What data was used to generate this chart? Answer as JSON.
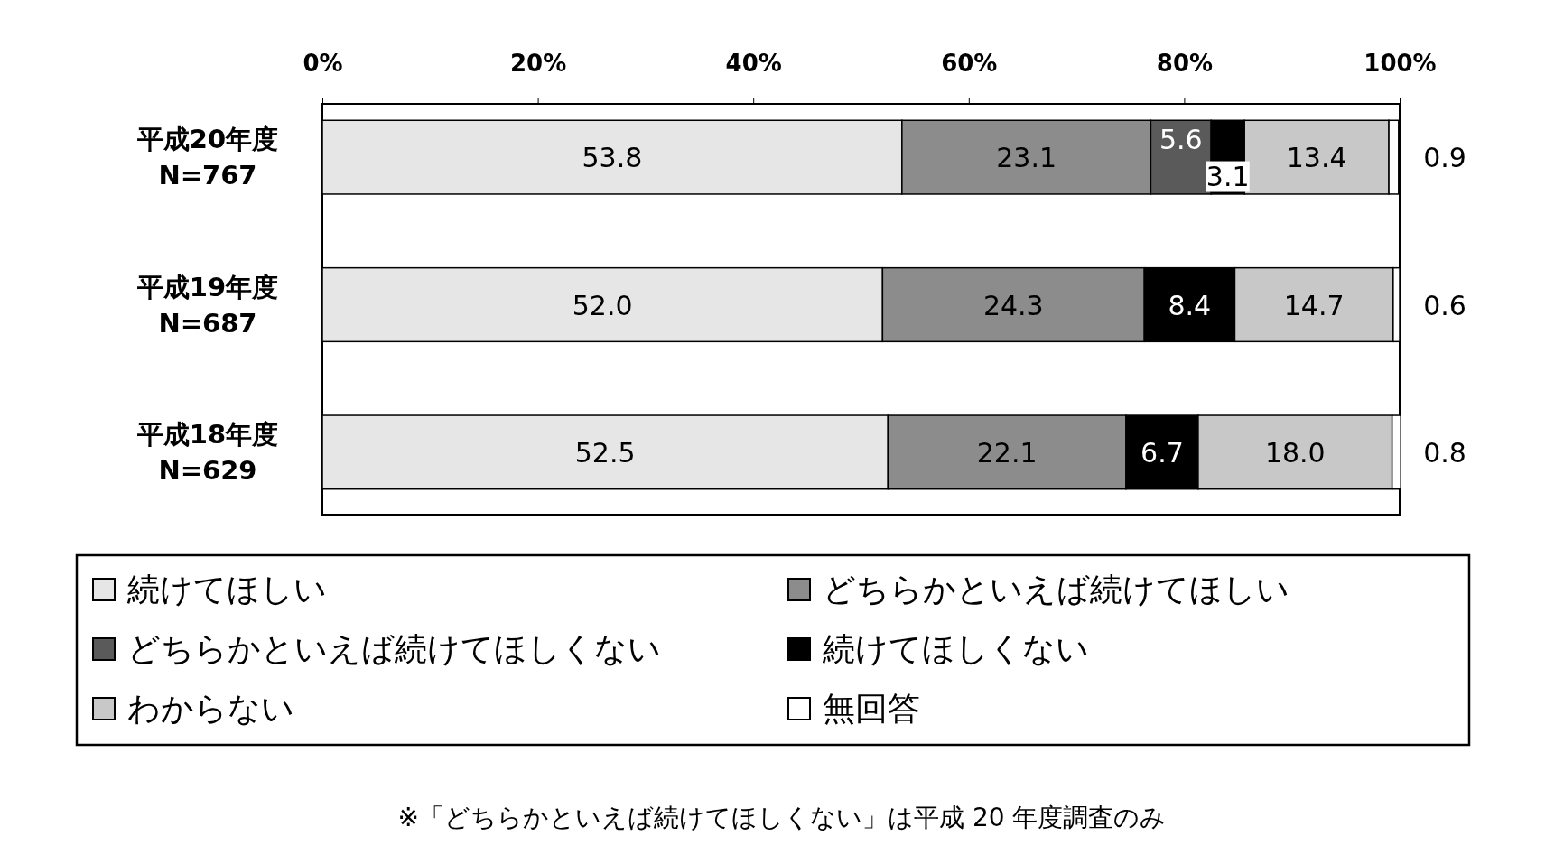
{
  "chart_data": {
    "type": "bar",
    "orientation": "horizontal",
    "stacked": true,
    "categories": [
      "平成20年度\nN=767",
      "平成19年度\nN=687",
      "平成18年度\nN=629"
    ],
    "series": [
      {
        "name": "続けてほしい",
        "color": "#e6e6e6",
        "values": [
          53.8,
          52.0,
          52.5
        ],
        "value_labels": [
          "53.8",
          "52.0",
          "52.5"
        ]
      },
      {
        "name": "どちらかといえば続けてほしい",
        "color": "#8c8c8c",
        "values": [
          23.1,
          24.3,
          22.1
        ],
        "value_labels": [
          "23.1",
          "24.3",
          "22.1"
        ]
      },
      {
        "name": "どちらかといえば続けてほしくない",
        "color": "#5a5a5a",
        "values": [
          5.6,
          null,
          null
        ],
        "value_labels": [
          "5.6",
          null,
          null
        ]
      },
      {
        "name": "続けてほしくない",
        "color": "#000000",
        "values": [
          3.1,
          8.4,
          6.7
        ],
        "value_labels": [
          "3.1",
          "8.4",
          "6.7"
        ]
      },
      {
        "name": "わからない",
        "color": "#c8c8c8",
        "values": [
          13.4,
          14.7,
          18.0
        ],
        "value_labels": [
          "13.4",
          "14.7",
          "18.0"
        ]
      },
      {
        "name": "無回答",
        "color": "#ffffff",
        "values": [
          0.9,
          0.6,
          0.8
        ],
        "value_labels": [
          "0.9",
          "0.6",
          "0.8"
        ]
      }
    ],
    "xlim": [
      0,
      100
    ],
    "xticks": [
      {
        "value": 0,
        "label": "0%"
      },
      {
        "value": 20,
        "label": "20%"
      },
      {
        "value": 40,
        "label": "40%"
      },
      {
        "value": 60,
        "label": "60%"
      },
      {
        "value": 80,
        "label": "80%"
      },
      {
        "value": 100,
        "label": "100%"
      }
    ],
    "legend": "bottom",
    "grid": false,
    "annotations": [
      "※「どちらかといえば続けてほしくない」は平成 20 年度調査のみ"
    ]
  }
}
